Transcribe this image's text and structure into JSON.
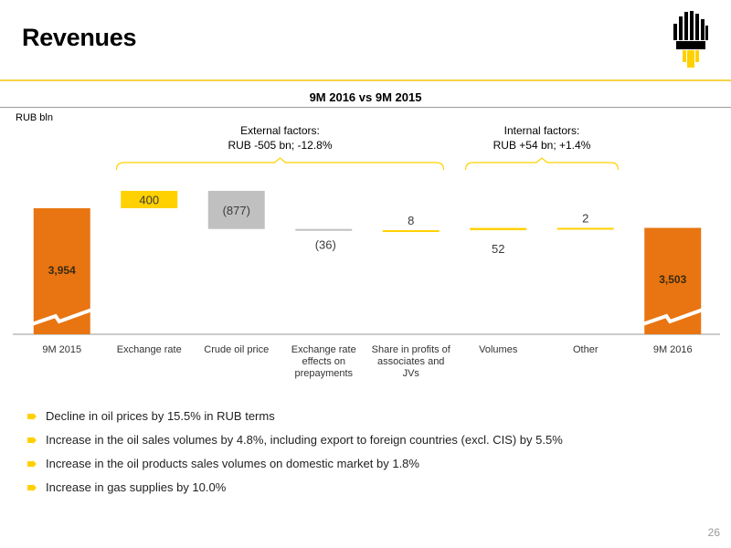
{
  "header": {
    "title": "Revenues"
  },
  "chart_title": "9M 2016 vs 9M 2015",
  "colors": {
    "orange": "#e87511",
    "yellow": "#ffd100",
    "grey": "#c0c0c0",
    "bracket": "#ffd100"
  },
  "chart_data": {
    "type": "bar",
    "subtype": "waterfall",
    "unit": "RUB bln",
    "categories": [
      "9M 2015",
      "Exchange rate",
      "Crude oil price",
      "Exchange rate effects on prepayments",
      "Share in profits of associates and JVs",
      "Volumes",
      "Other",
      "9M 2016"
    ],
    "category_lines": [
      [
        "9M 2015"
      ],
      [
        "Exchange rate"
      ],
      [
        "Crude oil price"
      ],
      [
        "Exchange rate",
        "effects on",
        "prepayments"
      ],
      [
        "Share in profits of",
        "associates and",
        "JVs"
      ],
      [
        "Volumes"
      ],
      [
        "Other"
      ],
      [
        "9M 2016"
      ]
    ],
    "values": [
      3954,
      400,
      -877,
      -36,
      8,
      52,
      2,
      3503
    ],
    "labels": [
      "3,954",
      "400",
      "(877)",
      "(36)",
      "8",
      "52",
      "2",
      "3,503"
    ],
    "kinds": [
      "total",
      "increase",
      "decrease",
      "decrease",
      "increase",
      "increase",
      "increase",
      "total"
    ],
    "axis_broken": true,
    "groups": [
      {
        "lines": [
          "External factors:",
          "RUB -505 bn; -12.8%"
        ],
        "from": 1,
        "to": 4
      },
      {
        "lines": [
          "Internal factors:",
          "RUB +54 bn; +1.4%"
        ],
        "from": 5,
        "to": 6
      }
    ]
  },
  "bullets": [
    "Decline in oil prices by 15.5% in RUB terms",
    "Increase in the oil sales volumes by 4.8%, including export to foreign countries (excl. CIS) by 5.5%",
    "Increase in the oil products sales volumes on domestic market by 1.8%",
    "Increase in gas supplies by 10.0%"
  ],
  "page_number": "26"
}
